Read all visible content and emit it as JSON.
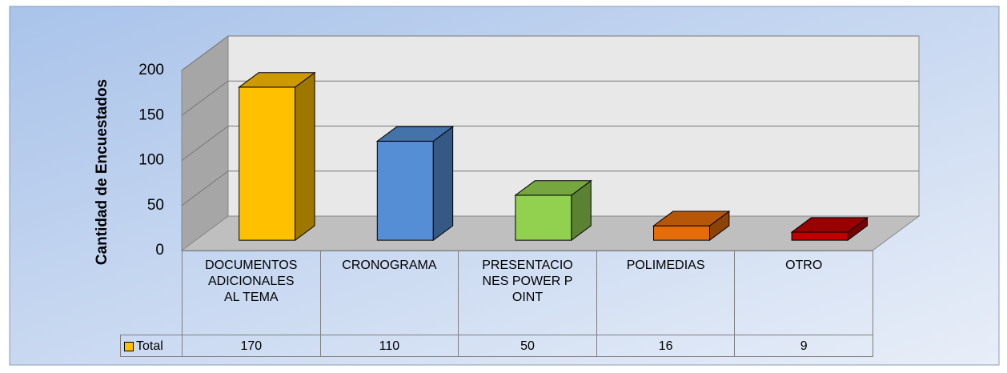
{
  "chart_data": {
    "type": "bar3d",
    "y_label": "Cantidad de Encuestados",
    "categories": [
      "DOCUMENTOS ADICIONALES AL TEMA",
      "CRONOGRAMA",
      "PRESENTACIONES POWER POINT",
      "POLIMEDIAS",
      "OTRO"
    ],
    "series": [
      {
        "name": "Total",
        "color": "#ffc000",
        "point_colors": [
          "#ffc000",
          "#558ed5",
          "#92d050",
          "#e46c0a",
          "#c00000"
        ],
        "values": [
          170,
          110,
          50,
          16,
          9
        ]
      }
    ],
    "ylim": [
      0,
      200
    ],
    "yticks": [
      0,
      50,
      100,
      150,
      200
    ],
    "grid": true,
    "data_table": true
  }
}
